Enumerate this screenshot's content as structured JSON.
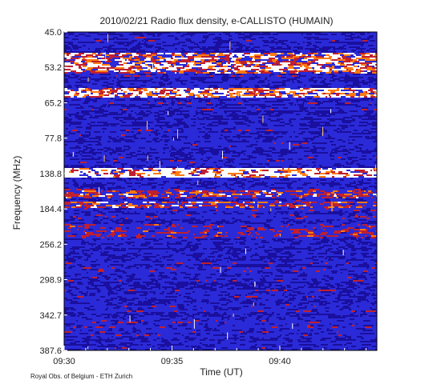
{
  "chart_data": {
    "type": "heatmap",
    "title": "2010/02/21  Radio flux density, e-CALLISTO (HUMAIN)",
    "xlabel": "Time (UT)",
    "ylabel": "Frequency (MHz)",
    "x_ticks": [
      "09:30",
      "09:35",
      "09:40"
    ],
    "y_ticks": [
      "45.0",
      "53.2",
      "65.2",
      "77.8",
      "138.8",
      "184.4",
      "256.2",
      "298.9",
      "342.7",
      "387.6"
    ],
    "xlim": [
      "09:30",
      "09:44:30"
    ],
    "ylim": [
      45.0,
      387.6
    ],
    "colormap": [
      "#000000",
      "#1a0f9e",
      "#2a2ad8",
      "#c02030",
      "#ff7a10",
      "#ffffff"
    ],
    "background_color": "#1e1eb4",
    "bright_bands_mhz": [
      {
        "freq_from": 50.0,
        "freq_to": 55.0,
        "intensity": "high"
      },
      {
        "freq_from": 60.0,
        "freq_to": 63.0,
        "intensity": "high"
      },
      {
        "freq_from": 128.0,
        "freq_to": 142.0,
        "intensity": "very high"
      },
      {
        "freq_from": 160.0,
        "freq_to": 168.0,
        "intensity": "medium"
      },
      {
        "freq_from": 176.0,
        "freq_to": 182.0,
        "intensity": "medium"
      },
      {
        "freq_from": 215.0,
        "freq_to": 240.0,
        "intensity": "low"
      }
    ]
  },
  "footer": {
    "credit": "Royal Obs. of Belgium - ETH Zurich"
  }
}
